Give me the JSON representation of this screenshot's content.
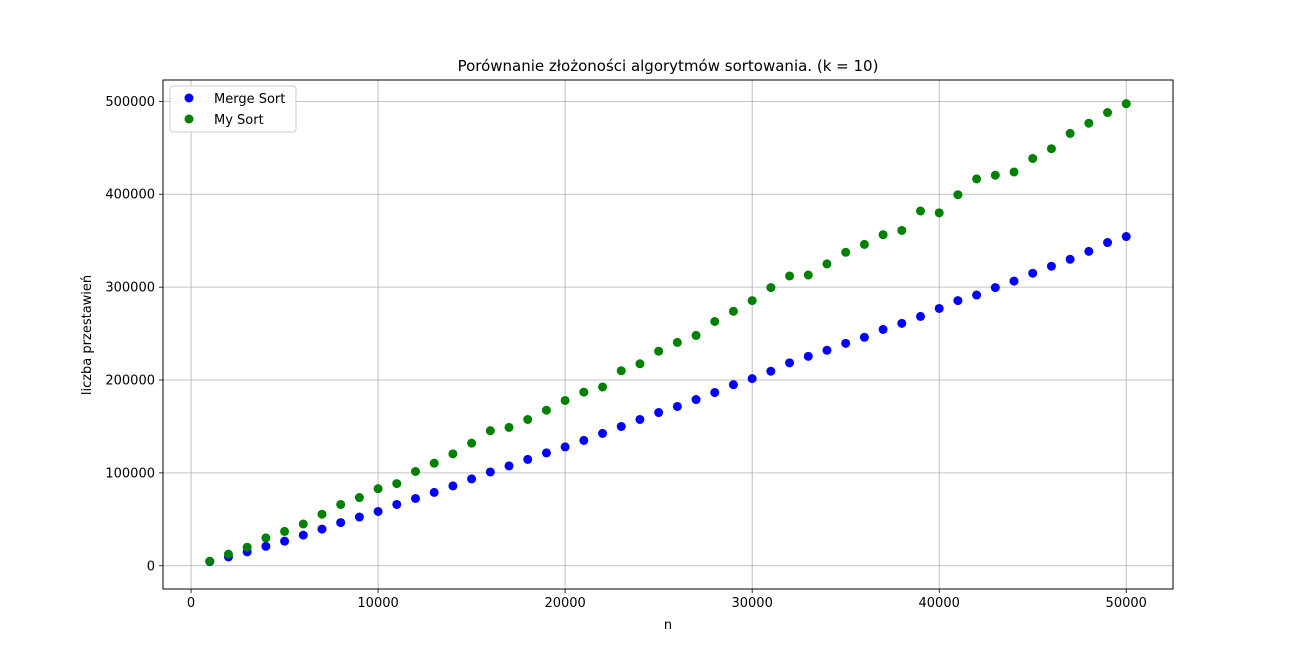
{
  "chart_data": {
    "type": "scatter",
    "title": "Porównanie złożoności algorytmów sortowania. (k = 10)",
    "xlabel": "n",
    "ylabel": "liczba przestawień",
    "xlim": [
      -1500,
      52500
    ],
    "ylim": [
      -25000,
      523000
    ],
    "xticks": [
      0,
      10000,
      20000,
      30000,
      40000,
      50000
    ],
    "yticks": [
      0,
      100000,
      200000,
      300000,
      400000,
      500000
    ],
    "grid": true,
    "legend_position": "top-left",
    "x": [
      1000,
      2000,
      3000,
      4000,
      5000,
      6000,
      7000,
      8000,
      9000,
      10000,
      11000,
      12000,
      13000,
      14000,
      15000,
      16000,
      17000,
      18000,
      19000,
      20000,
      21000,
      22000,
      23000,
      24000,
      25000,
      26000,
      27000,
      28000,
      29000,
      30000,
      31000,
      32000,
      33000,
      34000,
      35000,
      36000,
      37000,
      38000,
      39000,
      40000,
      41000,
      42000,
      43000,
      44000,
      45000,
      46000,
      47000,
      48000,
      49000,
      50000
    ],
    "series": [
      {
        "name": "Merge Sort",
        "color": "#0000ff",
        "values": [
          4500,
          9500,
          15000,
          21000,
          26500,
          33000,
          39500,
          46500,
          52500,
          58500,
          66000,
          72500,
          79000,
          86000,
          93500,
          101000,
          107500,
          114500,
          121500,
          128000,
          135000,
          142500,
          150000,
          157500,
          165000,
          171500,
          179000,
          186500,
          195000,
          201500,
          209500,
          218500,
          225500,
          232000,
          239500,
          246000,
          254500,
          261000,
          268500,
          277000,
          285500,
          291500,
          299500,
          306500,
          315000,
          322500,
          330000,
          338500,
          348000,
          354500
        ]
      },
      {
        "name": "My Sort",
        "color": "#008000",
        "values": [
          5000,
          12500,
          20000,
          30000,
          37000,
          45000,
          55500,
          66000,
          73500,
          83000,
          88500,
          101500,
          110500,
          120500,
          132000,
          145500,
          149000,
          157500,
          167500,
          178000,
          187000,
          192500,
          210000,
          217500,
          231000,
          240500,
          248000,
          263000,
          274000,
          285500,
          299500,
          312000,
          313000,
          325000,
          337500,
          346000,
          356500,
          361000,
          382000,
          380000,
          399500,
          416500,
          420500,
          424000,
          438500,
          449000,
          465500,
          476500,
          488000,
          497500
        ]
      }
    ]
  }
}
